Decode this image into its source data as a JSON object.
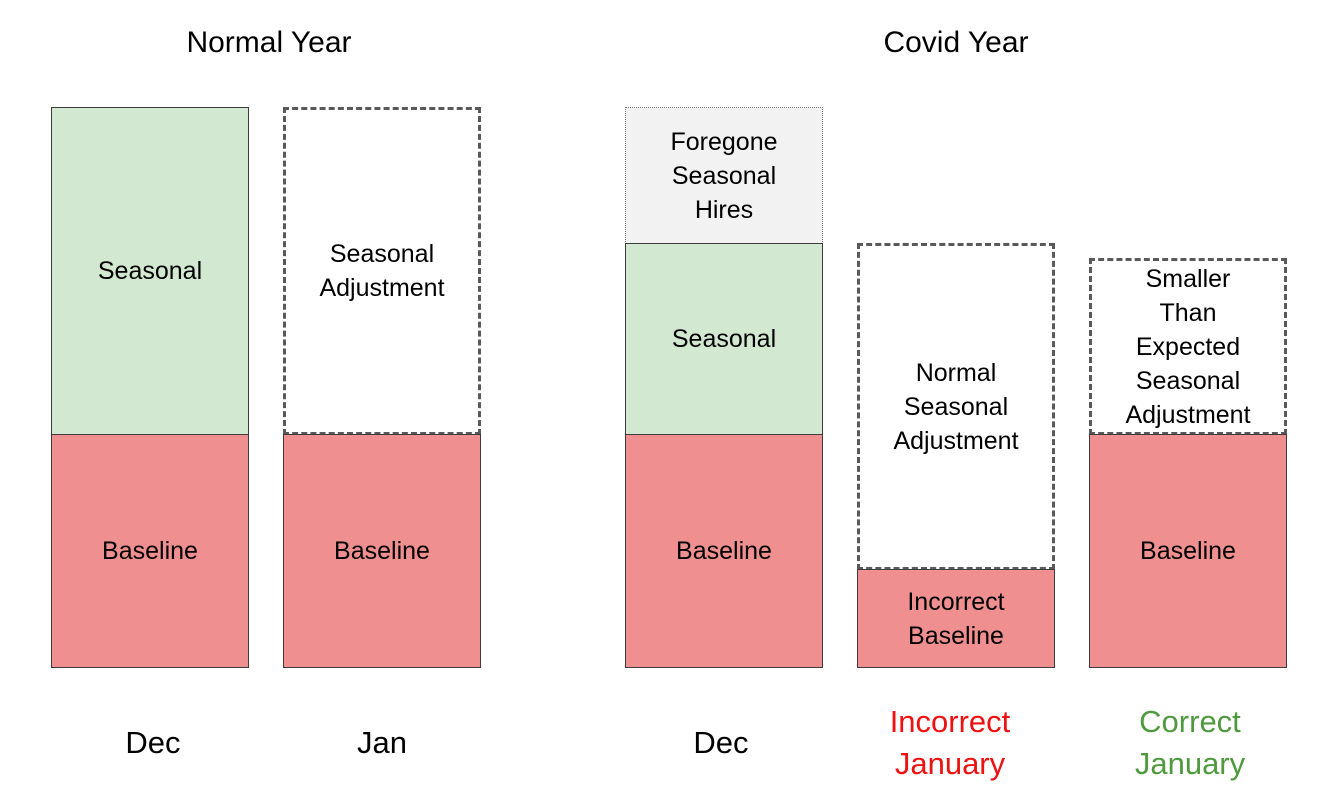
{
  "titles": {
    "normal": "Normal Year",
    "covid": "Covid Year"
  },
  "boxes": {
    "normal_dec_seasonal": "Seasonal",
    "normal_dec_baseline": "Baseline",
    "normal_jan_adjustment": "Seasonal\nAdjustment",
    "normal_jan_baseline": "Baseline",
    "covid_dec_foregone": "Foregone\nSeasonal\nHires",
    "covid_dec_seasonal": "Seasonal",
    "covid_dec_baseline": "Baseline",
    "incorrect_adjustment": "Normal\nSeasonal\nAdjustment",
    "incorrect_baseline": "Incorrect\nBaseline",
    "correct_adjustment": "Smaller\nThan\nExpected\nSeasonal\nAdjustment",
    "correct_baseline": "Baseline"
  },
  "labels": {
    "normal_dec": "Dec",
    "normal_jan": "Jan",
    "covid_dec": "Dec",
    "incorrect_jan": "Incorrect\nJanuary",
    "correct_jan": "Correct\nJanuary"
  },
  "colors": {
    "baseline": "#ef8f8f",
    "seasonal": "#d3e8d0",
    "foregone": "#f2f2f2",
    "incorrect_text": "#ee1111",
    "correct_text": "#4f9a3f"
  }
}
